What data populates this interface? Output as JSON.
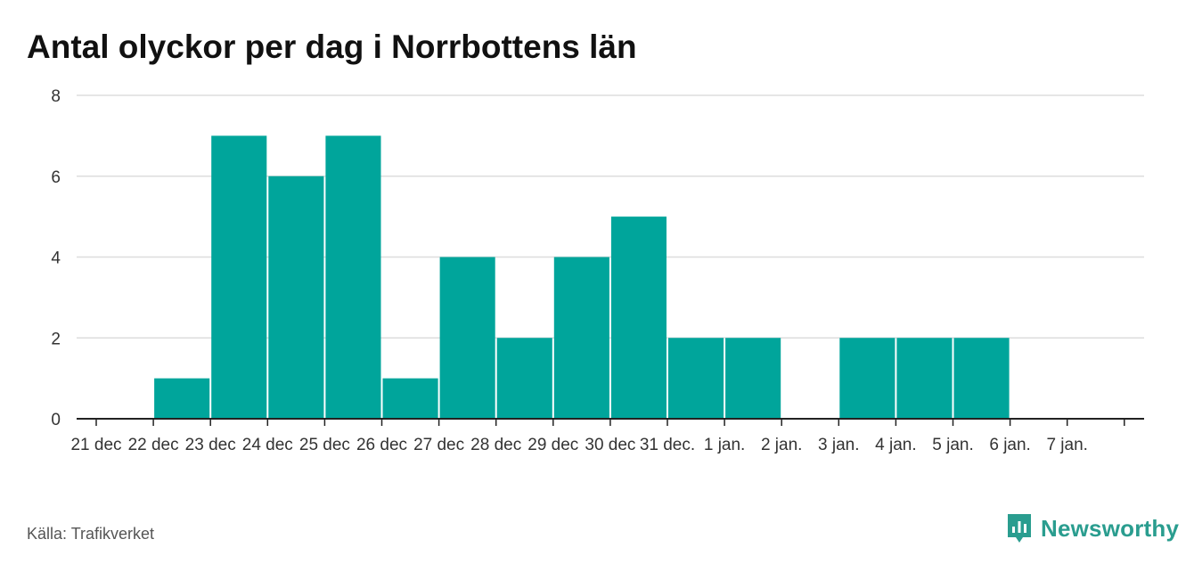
{
  "title": "Antal olyckor per dag i Norrbottens län",
  "source": "Källa: Trafikverket",
  "brand": {
    "name": "Newsworthy",
    "icon": "newsworthy-logo-icon",
    "color": "#2a9d8f"
  },
  "colors": {
    "bar": "#00a59b",
    "grid": "#dddddd",
    "axis": "#222222",
    "text": "#333333"
  },
  "chart_data": {
    "type": "bar",
    "title": "Antal olyckor per dag i Norrbottens län",
    "xlabel": "",
    "ylabel": "",
    "categories": [
      "21 dec",
      "22 dec",
      "23 dec",
      "24 dec",
      "25 dec",
      "26 dec",
      "27 dec",
      "28 dec",
      "29 dec",
      "30 dec",
      "31 dec.",
      "1 jan.",
      "2 jan.",
      "3 jan.",
      "4 jan.",
      "5 jan.",
      "6 jan.",
      "7 jan."
    ],
    "values": [
      0,
      1,
      7,
      6,
      7,
      1,
      4,
      2,
      4,
      5,
      2,
      2,
      0,
      2,
      2,
      2,
      0,
      0
    ],
    "ylim": [
      0,
      8
    ],
    "yticks": [
      0,
      2,
      4,
      6,
      8
    ],
    "grid": true,
    "legend": "none"
  }
}
